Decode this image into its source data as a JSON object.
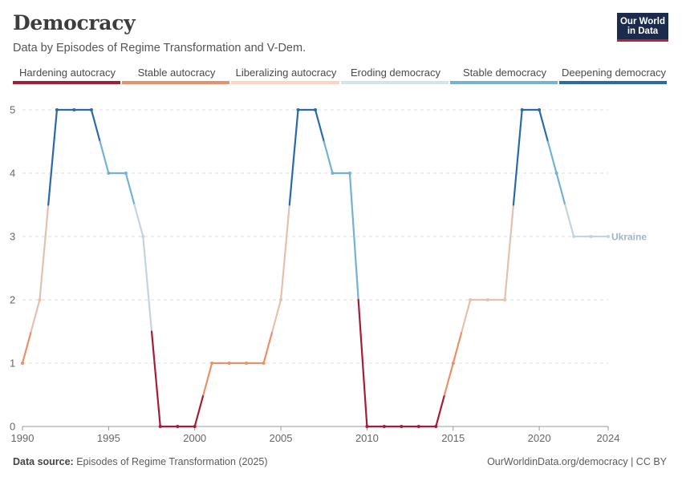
{
  "header": {
    "title": "Democracy",
    "subtitle": "Data by Episodes of Regime Transformation and V-Dem.",
    "logo_line1": "Our World",
    "logo_line2": "in Data"
  },
  "legend": [
    {
      "label": "Hardening autocracy",
      "color": "#a51d34"
    },
    {
      "label": "Stable autocracy",
      "color": "#e8906a"
    },
    {
      "label": "Liberalizing autocracy",
      "color": "#fbd4c4"
    },
    {
      "label": "Eroding democracy",
      "color": "#d2e4ef"
    },
    {
      "label": "Stable democracy",
      "color": "#74b1d4"
    },
    {
      "label": "Deepening democracy",
      "color": "#2a6aa8"
    }
  ],
  "footer": {
    "source_label": "Data source:",
    "source_text": "Episodes of Regime Transformation (2025)",
    "credit": "OurWorldinData.org/democracy | CC BY"
  },
  "chart_data": {
    "type": "line",
    "title": "Democracy",
    "xlabel": "",
    "ylabel": "",
    "xlim": [
      1990,
      2024
    ],
    "ylim": [
      0,
      5
    ],
    "x_ticks": [
      1990,
      1995,
      2000,
      2005,
      2010,
      2015,
      2020,
      2024
    ],
    "y_ticks": [
      0,
      1,
      2,
      3,
      4,
      5
    ],
    "grid": "horizontal dashed",
    "series": [
      {
        "name": "Ukraine",
        "x": [
          1990,
          1991,
          1992,
          1993,
          1994,
          1995,
          1996,
          1997,
          1998,
          1999,
          2000,
          2001,
          2002,
          2003,
          2004,
          2005,
          2006,
          2007,
          2008,
          2009,
          2010,
          2011,
          2012,
          2013,
          2014,
          2015,
          2016,
          2017,
          2018,
          2019,
          2020,
          2021,
          2022,
          2023,
          2024
        ],
        "values": [
          1,
          2,
          5,
          5,
          5,
          4,
          4,
          3,
          0,
          0,
          0,
          1,
          1,
          1,
          1,
          2,
          5,
          5,
          4,
          4,
          0,
          0,
          0,
          0,
          0,
          1,
          2,
          2,
          2,
          5,
          5,
          4,
          3,
          3,
          3
        ]
      }
    ],
    "category_colors": [
      "#a51d34",
      "#e8906a",
      "#e2c1ae",
      "#c4d4df",
      "#74b1d4",
      "#2a6aa8"
    ]
  }
}
